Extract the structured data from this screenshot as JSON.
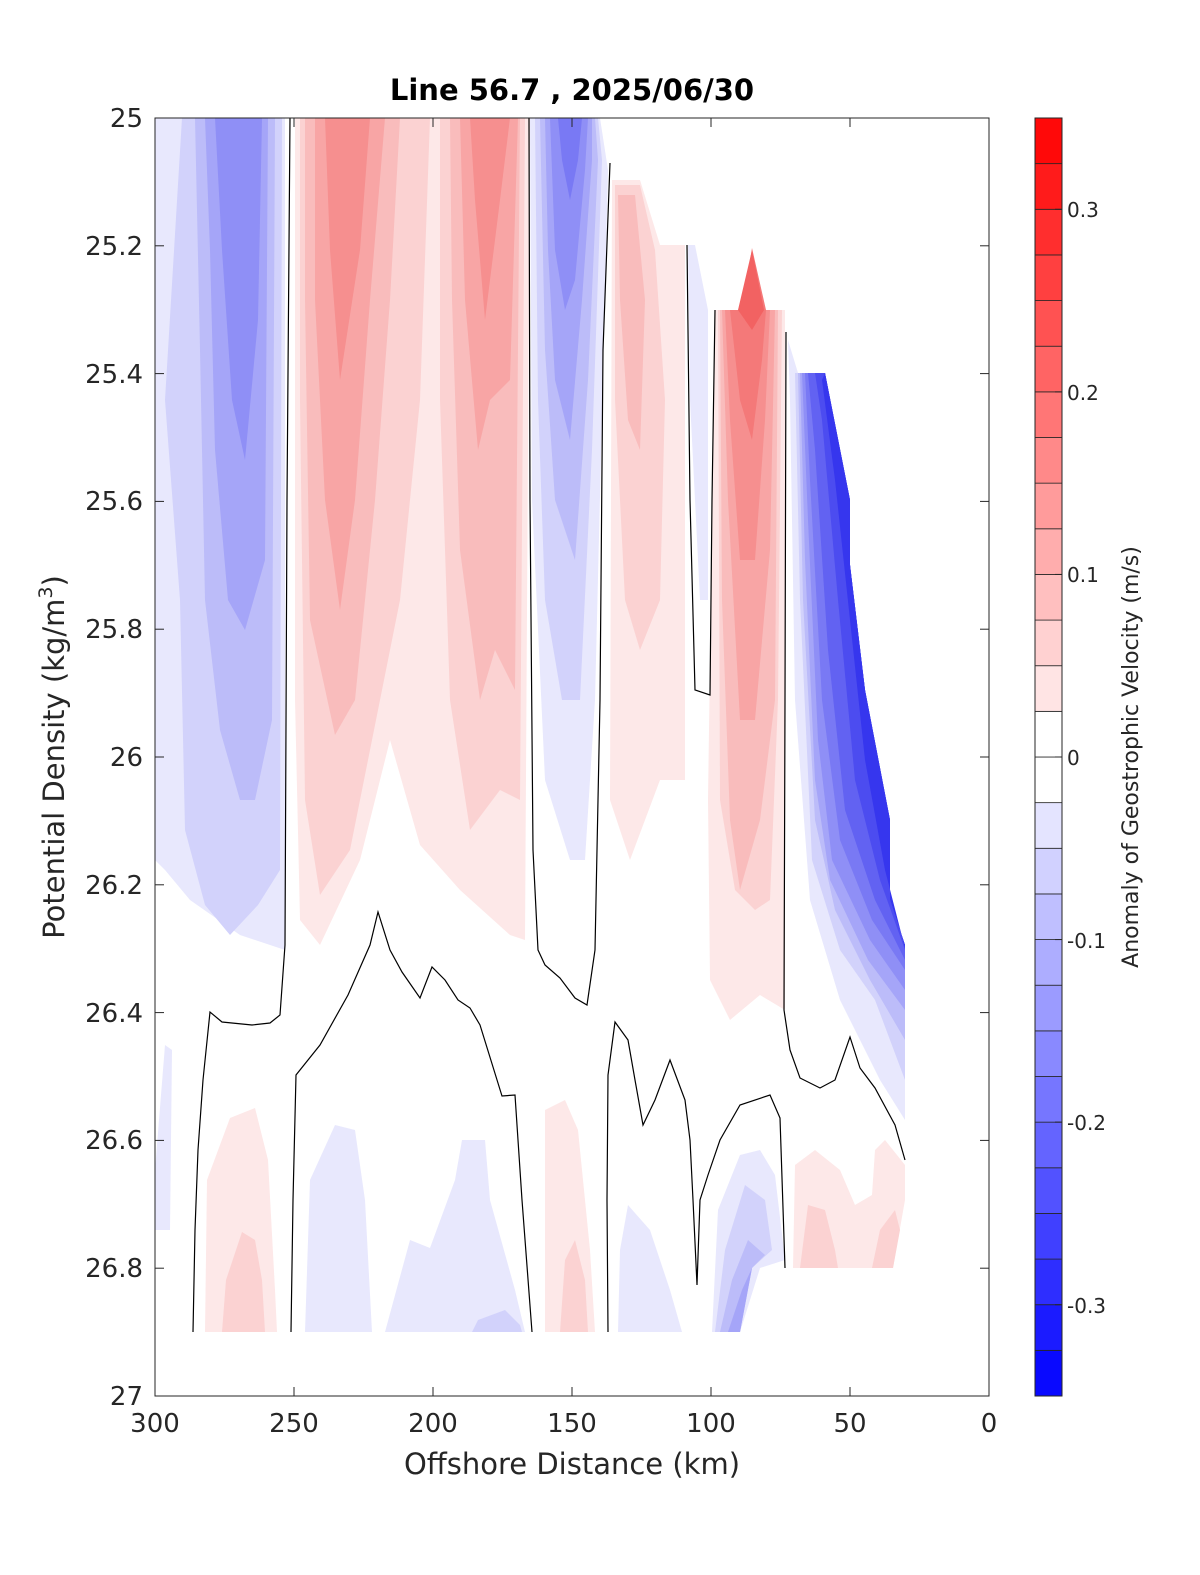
{
  "chart_data": {
    "type": "heatmap",
    "title": "Line 56.7 , 2025/06/30",
    "xlabel": "Offshore Distance (km)",
    "ylabel": "Potential Density (kg/m",
    "ylabel_sup": "3",
    "ylabel_close": ")",
    "xlim": [
      300,
      0
    ],
    "ylim": [
      25,
      27
    ],
    "x_ticks": [
      300,
      250,
      200,
      150,
      100,
      50,
      0
    ],
    "x_tick_labels": [
      "300",
      "250",
      "200",
      "150",
      "100",
      "50",
      "0"
    ],
    "y_ticks": [
      25,
      25.2,
      25.4,
      25.6,
      25.8,
      26,
      26.2,
      26.4,
      26.6,
      26.8,
      27
    ],
    "y_tick_labels": [
      "25",
      "25.2",
      "25.4",
      "25.6",
      "25.8",
      "26",
      "26.2",
      "26.4",
      "26.6",
      "26.8",
      "27"
    ],
    "colorbar": {
      "label": "Anomaly of Geostrophic Velocity (m/s)",
      "range": [
        -0.35,
        0.35
      ],
      "levels": 28,
      "ticks": [
        -0.3,
        -0.2,
        -0.1,
        0,
        0.1,
        0.2,
        0.3
      ],
      "tick_labels": [
        "-0.3",
        "-0.2",
        "-0.1",
        "0",
        "0.1",
        "0.2",
        "0.3"
      ],
      "colormap": "blue-white-red"
    },
    "anomaly_cores": [
      {
        "x": 270,
        "y_top": 25.0,
        "y_bottom": 26.25,
        "value": -0.17
      },
      {
        "x": 235,
        "y_top": 25.0,
        "y_bottom": 26.3,
        "value": 0.14
      },
      {
        "x": 180,
        "y_top": 25.0,
        "y_bottom": 26.3,
        "value": 0.14
      },
      {
        "x": 150,
        "y_top": 25.0,
        "y_bottom": 26.15,
        "value": -0.2
      },
      {
        "x": 125,
        "y_top": 25.1,
        "y_bottom": 26.15,
        "value": 0.08
      },
      {
        "x": 85,
        "y_top": 25.2,
        "y_bottom": 26.4,
        "value": 0.22
      },
      {
        "x": 40,
        "y_top": 25.4,
        "y_bottom": 26.6,
        "value": -0.28
      },
      {
        "x": 265,
        "y_top": 26.57,
        "y_bottom": 26.9,
        "value": 0.06
      },
      {
        "x": 225,
        "y_top": 26.58,
        "y_bottom": 26.9,
        "value": -0.04
      },
      {
        "x": 185,
        "y_top": 26.6,
        "y_bottom": 26.9,
        "value": -0.05
      },
      {
        "x": 150,
        "y_top": 26.58,
        "y_bottom": 26.9,
        "value": 0.06
      },
      {
        "x": 90,
        "y_top": 26.63,
        "y_bottom": 26.9,
        "value": -0.1
      },
      {
        "x": 55,
        "y_top": 26.6,
        "y_bottom": 26.8,
        "value": 0.06
      }
    ],
    "zero_contour": true
  },
  "colors": {
    "negative": "#0000ff",
    "positive": "#ff0000",
    "zero": "#ffffff",
    "contour": "#000000"
  }
}
